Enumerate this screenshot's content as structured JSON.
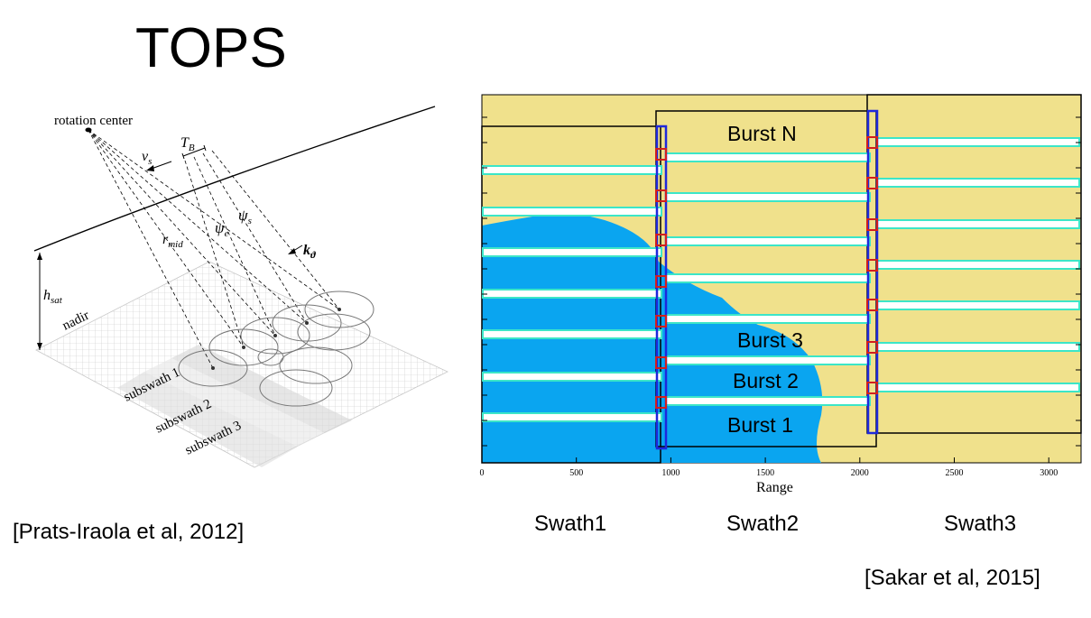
{
  "title": "TOPS",
  "left_figure": {
    "rotation_center": "rotation center",
    "v_s": "v",
    "v_s_sub": "s",
    "t_b": "T",
    "t_b_sub": "B",
    "r_mid": "r",
    "r_mid_sub": "mid",
    "psi_e": "ψ",
    "psi_e_sub": "e",
    "psi_s": "ψ",
    "psi_s_sub": "s",
    "k_theta": "k",
    "k_theta_sub": "ϑ",
    "h_sat": "h",
    "h_sat_sub": "sat",
    "nadir": "nadir",
    "subswaths": [
      "subswath 1",
      "subswath 2",
      "subswath 3"
    ]
  },
  "right_figure": {
    "bursts": [
      "Burst N",
      "Burst 3",
      "Burst 2",
      "Burst 1"
    ],
    "x_axis_label": "Range",
    "x_ticks": [
      "0",
      "500",
      "1000",
      "1500",
      "2000",
      "2500",
      "3000"
    ],
    "colors": {
      "land": "#f0e18c",
      "sea": "#0aa5f0",
      "burst_outline": "#3ce6c8",
      "swath_outline": "#1e28dc",
      "overlap_box": "#d21e1e"
    }
  },
  "swath_labels": [
    "Swath1",
    "Swath2",
    "Swath3"
  ],
  "citation_left": "[Prats-Iraola et al, 2012]",
  "citation_right": "[Sakar et al, 2015]"
}
